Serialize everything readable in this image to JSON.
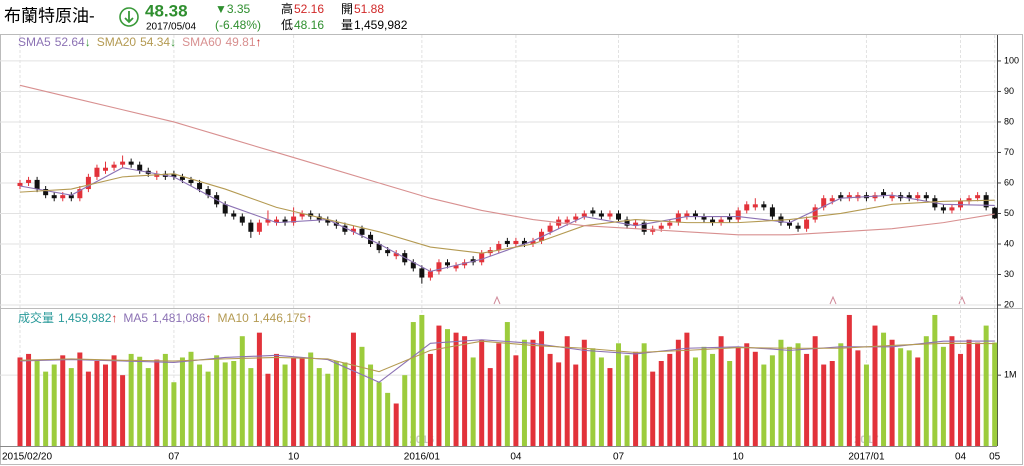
{
  "header": {
    "name": "布蘭特原油-",
    "price": 48.38,
    "date": "2017/05/04",
    "change": "▼3.35",
    "change_pct": "(-6.48%)",
    "high_label": "高",
    "high": 52.16,
    "low_label": "低",
    "low": 48.16,
    "open_label": "開",
    "open": 51.88,
    "volume_label": "量",
    "volume": "1,459,982"
  },
  "chart_data": {
    "type": "candlestick",
    "up_color": "#e2323a",
    "down_color": "#111111",
    "volume_up_color": "#e2323a",
    "volume_down_color": "#9ccc3c",
    "ylim": [
      20,
      108.5
    ],
    "yticks": [
      20,
      30,
      40,
      50,
      60,
      70,
      80,
      90,
      100
    ],
    "xlim": [
      0,
      114
    ],
    "xticks": [
      {
        "value": 0,
        "label": "2015/02/20"
      },
      {
        "value": 18,
        "label": "07"
      },
      {
        "value": 32,
        "label": "10"
      },
      {
        "value": 47,
        "label": "2016/01"
      },
      {
        "value": 58,
        "label": "04"
      },
      {
        "value": 70,
        "label": "07"
      },
      {
        "value": 84,
        "label": "10"
      },
      {
        "value": 99,
        "label": "2017/01"
      },
      {
        "value": 110,
        "label": "04"
      },
      {
        "value": 114,
        "label": "05"
      }
    ],
    "year_marks": [
      {
        "value": 47,
        "label": "2016"
      },
      {
        "value": 99,
        "label": "2017"
      }
    ],
    "candles": [
      [
        59,
        61,
        58,
        60
      ],
      [
        60,
        62,
        59,
        61
      ],
      [
        61,
        62,
        57,
        58
      ],
      [
        58,
        59,
        55,
        56
      ],
      [
        56,
        57,
        54,
        55
      ],
      [
        55,
        57,
        54,
        56
      ],
      [
        56,
        57,
        54,
        55
      ],
      [
        55,
        59,
        54,
        58
      ],
      [
        58,
        63,
        57,
        62
      ],
      [
        62,
        66,
        61,
        65
      ],
      [
        64,
        67,
        63,
        65
      ],
      [
        65,
        67,
        64,
        66
      ],
      [
        66,
        69,
        65,
        67
      ],
      [
        67,
        68,
        65,
        66
      ],
      [
        66,
        67,
        63,
        64
      ],
      [
        64,
        65,
        62,
        63
      ],
      [
        62,
        64,
        61,
        63
      ],
      [
        63,
        64,
        61,
        62
      ],
      [
        63,
        64,
        61,
        62
      ],
      [
        62,
        63,
        60,
        61
      ],
      [
        61,
        62,
        59,
        60
      ],
      [
        60,
        61,
        57,
        58
      ],
      [
        58,
        59,
        55,
        56
      ],
      [
        56,
        57,
        52,
        53
      ],
      [
        53,
        54,
        49,
        50
      ],
      [
        50,
        51,
        48,
        49
      ],
      [
        49,
        50,
        46,
        47
      ],
      [
        47,
        48,
        42,
        44
      ],
      [
        44,
        48,
        43,
        47
      ],
      [
        47,
        51,
        46,
        48
      ],
      [
        47,
        49,
        46,
        48
      ],
      [
        48,
        49,
        46,
        47
      ],
      [
        47,
        52,
        46,
        49
      ],
      [
        49,
        51,
        48,
        50
      ],
      [
        50,
        51,
        48,
        49
      ],
      [
        49,
        50,
        47,
        48
      ],
      [
        48,
        49,
        46,
        47
      ],
      [
        47,
        48,
        45,
        46
      ],
      [
        46,
        47,
        43,
        44
      ],
      [
        44,
        46,
        43,
        45
      ],
      [
        45,
        46,
        42,
        43
      ],
      [
        43,
        44,
        39,
        40
      ],
      [
        40,
        41,
        37,
        38
      ],
      [
        38,
        39,
        36,
        37
      ],
      [
        36,
        38,
        35,
        37
      ],
      [
        37,
        38,
        33,
        34
      ],
      [
        34,
        35,
        31,
        32
      ],
      [
        32,
        33,
        27,
        29
      ],
      [
        29,
        32,
        28,
        31
      ],
      [
        31,
        35,
        30,
        34
      ],
      [
        34,
        35,
        32,
        33
      ],
      [
        32,
        34,
        31,
        33
      ],
      [
        33,
        35,
        32,
        34
      ],
      [
        35,
        36,
        33,
        34
      ],
      [
        34,
        38,
        33,
        37
      ],
      [
        37,
        39,
        36,
        38
      ],
      [
        38,
        41,
        37,
        40
      ],
      [
        41,
        42,
        39,
        40
      ],
      [
        40,
        42,
        39,
        41
      ],
      [
        41,
        42,
        39,
        40
      ],
      [
        40,
        42,
        39,
        41
      ],
      [
        41,
        45,
        40,
        44
      ],
      [
        44,
        47,
        43,
        46
      ],
      [
        46,
        49,
        45,
        48
      ],
      [
        47,
        49,
        46,
        48
      ],
      [
        48,
        50,
        47,
        49
      ],
      [
        49,
        51,
        48,
        50
      ],
      [
        51,
        52,
        49,
        50
      ],
      [
        50,
        51,
        48,
        49
      ],
      [
        49,
        51,
        48,
        50
      ],
      [
        50,
        51,
        47,
        48
      ],
      [
        48,
        49,
        45,
        46
      ],
      [
        46,
        48,
        45,
        47
      ],
      [
        47,
        48,
        43,
        44
      ],
      [
        44,
        46,
        43,
        45
      ],
      [
        45,
        47,
        44,
        46
      ],
      [
        46,
        48,
        45,
        47
      ],
      [
        47,
        51,
        46,
        50
      ],
      [
        49,
        51,
        48,
        50
      ],
      [
        50,
        51,
        48,
        49
      ],
      [
        49,
        50,
        47,
        48
      ],
      [
        48,
        49,
        46,
        47
      ],
      [
        47,
        49,
        46,
        48
      ],
      [
        49,
        50,
        47,
        48
      ],
      [
        48,
        52,
        47,
        51
      ],
      [
        51,
        54,
        50,
        53
      ],
      [
        52,
        55,
        51,
        53
      ],
      [
        53,
        54,
        51,
        52
      ],
      [
        52,
        53,
        48,
        49
      ],
      [
        49,
        50,
        46,
        47
      ],
      [
        47,
        48,
        45,
        46
      ],
      [
        46,
        47,
        44,
        45
      ],
      [
        45,
        49,
        44,
        48
      ],
      [
        48,
        53,
        47,
        52
      ],
      [
        52,
        56,
        51,
        55
      ],
      [
        54,
        56,
        53,
        55
      ],
      [
        56,
        57,
        54,
        55
      ],
      [
        55,
        57,
        54,
        56
      ],
      [
        55,
        57,
        54,
        56
      ],
      [
        56,
        57,
        54,
        55
      ],
      [
        55,
        57,
        54,
        56
      ],
      [
        57,
        58,
        55,
        56
      ],
      [
        55,
        57,
        54,
        56
      ],
      [
        56,
        57,
        54,
        55
      ],
      [
        56,
        57,
        54,
        55
      ],
      [
        55,
        57,
        54,
        56
      ],
      [
        56,
        57,
        54,
        55
      ],
      [
        55,
        56,
        51,
        52
      ],
      [
        52,
        53,
        50,
        51
      ],
      [
        51,
        53,
        50,
        52
      ],
      [
        52,
        55,
        51,
        54
      ],
      [
        54,
        56,
        53,
        55
      ],
      [
        55,
        57,
        54,
        56
      ],
      [
        56,
        57,
        51,
        52
      ],
      [
        51.88,
        52.16,
        48.16,
        48.38
      ]
    ],
    "ma": [
      {
        "name": "SMA5",
        "color": "#8c72b4",
        "last": 52.64,
        "arrow": "↓",
        "arrow_color": "#3a9a3a",
        "x": [
          0,
          6,
          12,
          18,
          24,
          30,
          36,
          42,
          48,
          54,
          60,
          66,
          72,
          78,
          84,
          90,
          96,
          102,
          108,
          114
        ],
        "values": [
          59,
          56,
          65,
          62,
          53,
          47,
          48,
          40,
          31,
          35,
          41,
          49,
          46,
          49,
          49,
          47,
          55,
          56,
          53,
          52.64
        ]
      },
      {
        "name": "SMA20",
        "color": "#b49a52",
        "last": 54.34,
        "arrow": "↓",
        "arrow_color": "#3a9a3a",
        "x": [
          0,
          6,
          12,
          18,
          24,
          30,
          36,
          42,
          48,
          54,
          60,
          66,
          72,
          78,
          84,
          90,
          96,
          102,
          108,
          114
        ],
        "values": [
          57,
          58,
          62,
          63,
          58,
          52,
          48,
          44,
          39,
          37,
          40,
          46,
          48,
          47,
          47,
          48,
          50,
          53,
          54,
          54.34
        ]
      },
      {
        "name": "SMA60",
        "color": "#d89090",
        "last": 49.81,
        "arrow": "↑",
        "arrow_color": "#c83030",
        "x": [
          0,
          6,
          12,
          18,
          24,
          30,
          36,
          42,
          48,
          54,
          60,
          66,
          72,
          78,
          84,
          90,
          96,
          102,
          108,
          114
        ],
        "values": [
          92,
          88,
          84,
          80,
          75,
          70,
          65,
          60,
          55,
          51,
          48,
          46,
          45,
          44,
          43,
          43,
          44,
          45,
          47,
          49.81
        ]
      }
    ],
    "volume": {
      "name": "成交量",
      "color": "#2a9a9a",
      "last": "1,459,982",
      "arrow": "↑",
      "ylim": [
        0,
        1920000
      ],
      "yticks": [
        {
          "value": 1000000,
          "label": "1M"
        }
      ],
      "values": [
        1250000,
        1300000,
        1200000,
        1050000,
        1150000,
        1280000,
        1100000,
        1320000,
        1050000,
        1200000,
        1150000,
        1280000,
        1000000,
        1300000,
        1260000,
        1100000,
        1220000,
        1300000,
        900000,
        1250000,
        1330000,
        1150000,
        1050000,
        1280000,
        1180000,
        1200000,
        1550000,
        1100000,
        1600000,
        1020000,
        1300000,
        1150000,
        1250000,
        1250000,
        1320000,
        1100000,
        1020000,
        1200000,
        1180000,
        1600000,
        1400000,
        1150000,
        900000,
        750000,
        600000,
        1000000,
        1750000,
        1850000,
        1300000,
        1700000,
        1650000,
        1600000,
        1550000,
        1250000,
        1500000,
        1100000,
        1450000,
        1750000,
        1280000,
        1500000,
        1500000,
        1620000,
        1300000,
        1180000,
        1550000,
        1150000,
        1500000,
        1380000,
        1250000,
        1100000,
        1450000,
        1280000,
        1330000,
        1450000,
        1050000,
        1200000,
        1300000,
        1500000,
        1600000,
        1250000,
        1400000,
        1300000,
        1550000,
        1200000,
        1400000,
        1450000,
        1330000,
        1150000,
        1280000,
        1500000,
        1400000,
        1450000,
        1300000,
        1550000,
        1150000,
        1200000,
        1450000,
        1850000,
        1350000,
        1150000,
        1700000,
        1600000,
        1500000,
        1380000,
        1350000,
        1250000,
        1550000,
        1850000,
        1400000,
        1550000,
        1300000,
        1500000,
        1460000,
        1700000,
        1459982
      ],
      "ma": [
        {
          "name": "MA5",
          "color": "#8c72b4",
          "last": "1,481,086",
          "arrow": "↑",
          "x": [
            0,
            6,
            12,
            18,
            24,
            30,
            36,
            42,
            48,
            54,
            60,
            66,
            72,
            78,
            84,
            90,
            96,
            102,
            108,
            114
          ],
          "values": [
            1200000,
            1220000,
            1200000,
            1180000,
            1250000,
            1280000,
            1220000,
            900000,
            1450000,
            1500000,
            1450000,
            1350000,
            1300000,
            1380000,
            1400000,
            1350000,
            1400000,
            1400000,
            1480000,
            1481086
          ]
        },
        {
          "name": "MA10",
          "color": "#b49a52",
          "last": "1,446,175",
          "arrow": "↑",
          "x": [
            0,
            6,
            12,
            18,
            24,
            30,
            36,
            42,
            48,
            54,
            60,
            66,
            72,
            78,
            84,
            90,
            96,
            102,
            108,
            114
          ],
          "values": [
            1210000,
            1230000,
            1210000,
            1200000,
            1230000,
            1250000,
            1230000,
            1050000,
            1350000,
            1480000,
            1420000,
            1380000,
            1320000,
            1350000,
            1390000,
            1380000,
            1380000,
            1420000,
            1450000,
            1446175
          ]
        }
      ]
    }
  }
}
